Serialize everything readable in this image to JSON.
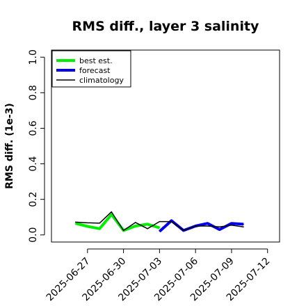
{
  "chart_data": {
    "type": "line",
    "title": "RMS diff., layer 3 salinity",
    "xlabel": "",
    "ylabel": "RMS diff. (1e-3)",
    "ylim": [
      -0.04,
      1.04
    ],
    "xlim": [
      "2025-06-24",
      "2025-07-13"
    ],
    "yticks": [
      "0.0",
      "0.2",
      "0.4",
      "0.6",
      "0.8",
      "1.0"
    ],
    "xticks": [
      {
        "label": "2025-06-27",
        "color": "#000000"
      },
      {
        "label": "2025-06-30",
        "color": "#000000"
      },
      {
        "label": "2025-07-03",
        "color": "#228B22"
      },
      {
        "label": "2025-07-06",
        "color": "#000000"
      },
      {
        "label": "2025-07-09",
        "color": "#000000"
      },
      {
        "label": "2025-07-12",
        "color": "#000000"
      }
    ],
    "grid": false,
    "legend_position": "top-left",
    "series": [
      {
        "name": "best est.",
        "color": "#00ee00",
        "x": [
          "2025-06-26",
          "2025-06-27",
          "2025-06-28",
          "2025-06-29",
          "2025-06-30",
          "2025-07-01",
          "2025-07-02",
          "2025-07-03"
        ],
        "values": [
          0.065,
          0.048,
          0.035,
          0.115,
          0.025,
          0.05,
          0.06,
          0.04
        ]
      },
      {
        "name": "forecast",
        "color": "#0000ee",
        "x": [
          "2025-07-03",
          "2025-07-04",
          "2025-07-05",
          "2025-07-06",
          "2025-07-07",
          "2025-07-08",
          "2025-07-09",
          "2025-07-10"
        ],
        "values": [
          0.02,
          0.08,
          0.025,
          0.05,
          0.065,
          0.03,
          0.065,
          0.06
        ]
      },
      {
        "name": "climatology",
        "color": "#000000",
        "x": [
          "2025-06-26",
          "2025-06-27",
          "2025-06-28",
          "2025-06-29",
          "2025-06-30",
          "2025-07-01",
          "2025-07-02",
          "2025-07-03",
          "2025-07-04",
          "2025-07-05",
          "2025-07-06",
          "2025-07-07",
          "2025-07-08",
          "2025-07-09",
          "2025-07-10"
        ],
        "values": [
          0.072,
          0.068,
          0.066,
          0.13,
          0.025,
          0.07,
          0.035,
          0.075,
          0.075,
          0.025,
          0.05,
          0.05,
          0.045,
          0.055,
          0.045
        ]
      }
    ]
  }
}
